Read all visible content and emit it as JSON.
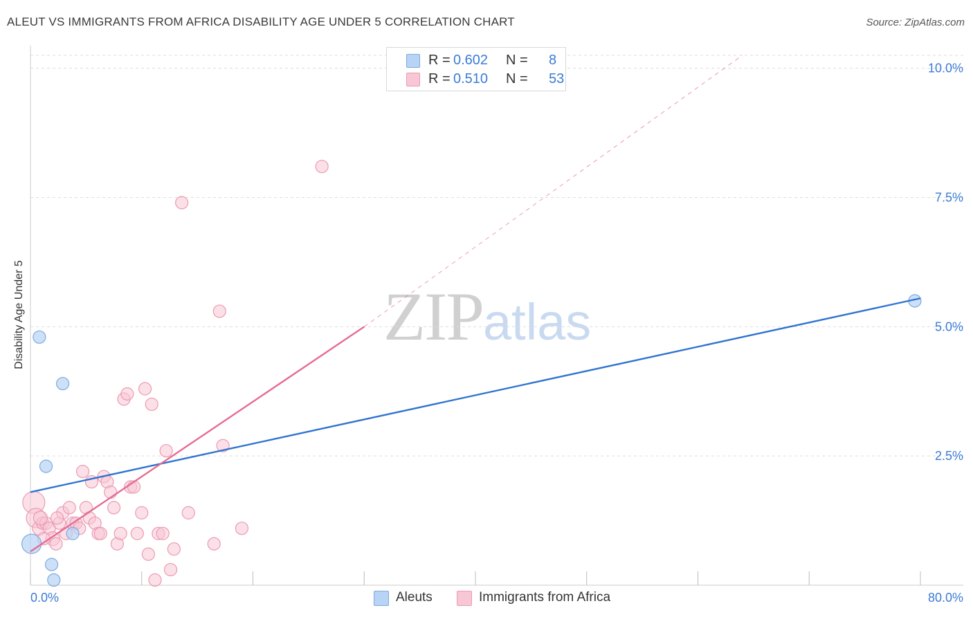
{
  "header": {
    "title": "ALEUT VS IMMIGRANTS FROM AFRICA DISABILITY AGE UNDER 5 CORRELATION CHART",
    "source": "Source: ZipAtlas.com"
  },
  "watermark": {
    "zip": "ZIP",
    "atlas": "atlas"
  },
  "legend": {
    "rows": [
      {
        "r_label": "R =",
        "r_value": "0.602",
        "n_label": "N =",
        "n_value": "8"
      },
      {
        "r_label": "R =",
        "r_value": "0.510",
        "n_label": "N =",
        "n_value": "53"
      }
    ]
  },
  "bottom_legend": {
    "aleuts": "Aleuts",
    "africa": "Immigrants from Africa"
  },
  "colors": {
    "aleut_fill": "#b7d3f5",
    "aleut_stroke": "#7fa9dc",
    "aleut_line": "#2f74d0",
    "africa_fill": "#f8c7d6",
    "africa_stroke": "#eb9ab3",
    "africa_line": "#e56b95",
    "grid": "#dddddd",
    "axis_text": "#3a7bd5"
  },
  "chart_data": {
    "type": "scatter",
    "title": "ALEUT VS IMMIGRANTS FROM AFRICA DISABILITY AGE UNDER 5 CORRELATION CHART",
    "xlabel": "",
    "ylabel": "Disability Age Under 5",
    "xlim": [
      0,
      80
    ],
    "ylim": [
      0,
      10.25
    ],
    "x_tick_labels": [
      "0.0%",
      "80.0%"
    ],
    "y_ticks": [
      2.5,
      5.0,
      7.5,
      10.0
    ],
    "y_tick_labels": [
      "2.5%",
      "5.0%",
      "7.5%",
      "10.0%"
    ],
    "grid": true,
    "series": [
      {
        "name": "Aleuts",
        "r": 0.602,
        "n": 8,
        "points": [
          [
            0.1,
            0.8,
            14
          ],
          [
            0.8,
            4.8,
            9
          ],
          [
            2.9,
            3.9,
            9
          ],
          [
            1.4,
            2.3,
            9
          ],
          [
            3.8,
            1.0,
            9
          ],
          [
            1.9,
            0.4,
            9
          ],
          [
            2.1,
            0.1,
            9
          ],
          [
            79.5,
            5.5,
            9
          ]
        ],
        "trend": {
          "x": [
            0,
            80
          ],
          "y": [
            1.8,
            5.55
          ]
        }
      },
      {
        "name": "Immigrants from Africa",
        "r": 0.51,
        "n": 53,
        "points": [
          [
            0.3,
            1.6,
            16
          ],
          [
            0.5,
            1.3,
            14
          ],
          [
            0.8,
            1.1,
            10
          ],
          [
            1.1,
            1.2,
            9
          ],
          [
            1.4,
            1.2,
            9
          ],
          [
            1.7,
            1.1,
            9
          ],
          [
            2.0,
            0.9,
            10
          ],
          [
            2.3,
            0.8,
            9
          ],
          [
            2.6,
            1.2,
            9
          ],
          [
            2.9,
            1.4,
            9
          ],
          [
            3.2,
            1.0,
            9
          ],
          [
            3.5,
            1.5,
            9
          ],
          [
            3.8,
            1.2,
            9
          ],
          [
            4.1,
            1.2,
            9
          ],
          [
            4.4,
            1.1,
            9
          ],
          [
            4.7,
            2.2,
            9
          ],
          [
            5.0,
            1.5,
            9
          ],
          [
            5.3,
            1.3,
            9
          ],
          [
            5.5,
            2.0,
            9
          ],
          [
            5.8,
            1.2,
            9
          ],
          [
            6.1,
            1.0,
            9
          ],
          [
            6.3,
            1.0,
            9
          ],
          [
            6.6,
            2.1,
            9
          ],
          [
            6.9,
            2.0,
            9
          ],
          [
            7.2,
            1.8,
            9
          ],
          [
            7.5,
            1.5,
            9
          ],
          [
            7.8,
            0.8,
            9
          ],
          [
            8.1,
            1.0,
            9
          ],
          [
            8.4,
            3.6,
            9
          ],
          [
            8.7,
            3.7,
            9
          ],
          [
            9.0,
            1.9,
            9
          ],
          [
            9.3,
            1.9,
            9
          ],
          [
            9.6,
            1.0,
            9
          ],
          [
            10.0,
            1.4,
            9
          ],
          [
            10.3,
            3.8,
            9
          ],
          [
            10.6,
            0.6,
            9
          ],
          [
            10.9,
            3.5,
            9
          ],
          [
            11.2,
            0.1,
            9
          ],
          [
            11.5,
            1.0,
            9
          ],
          [
            11.9,
            1.0,
            9
          ],
          [
            12.2,
            2.6,
            9
          ],
          [
            12.6,
            0.3,
            9
          ],
          [
            12.9,
            0.7,
            9
          ],
          [
            13.6,
            7.4,
            9
          ],
          [
            14.2,
            1.4,
            9
          ],
          [
            16.5,
            0.8,
            9
          ],
          [
            17.0,
            5.3,
            9
          ],
          [
            17.3,
            2.7,
            9
          ],
          [
            19.0,
            1.1,
            9
          ],
          [
            26.2,
            8.1,
            9
          ],
          [
            0.9,
            1.3,
            10
          ],
          [
            1.2,
            0.9,
            9
          ],
          [
            2.4,
            1.3,
            9
          ]
        ],
        "trend": {
          "x": [
            0,
            30
          ],
          "y": [
            0.65,
            5.0
          ]
        },
        "trend_extension": {
          "x": [
            30,
            64
          ],
          "y": [
            5.0,
            10.25
          ]
        }
      }
    ]
  }
}
